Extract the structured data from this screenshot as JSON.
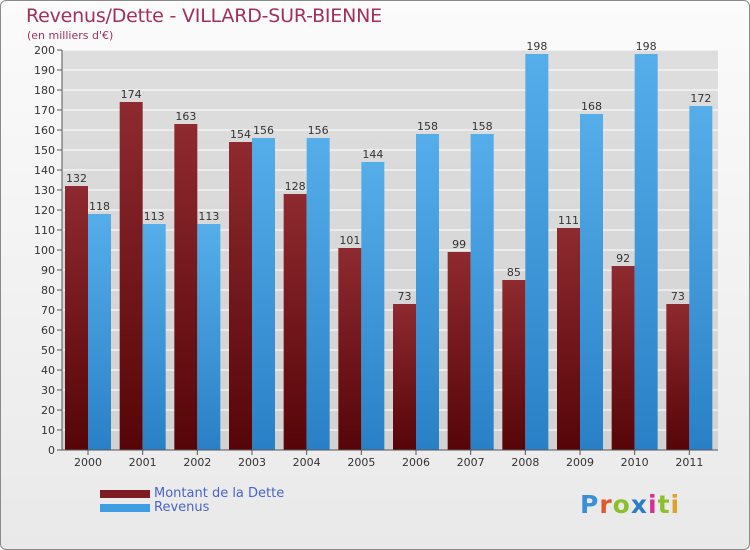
{
  "header": {
    "title": "Revenus/Dette - VILLARD-SUR-BIENNE",
    "subtitle": "(en milliers d'€)"
  },
  "logo": {
    "text": "Proxiti",
    "colors": [
      "#3b8fd9",
      "#e2582a",
      "#8bbf2e",
      "#2b7dc9",
      "#d9308f",
      "#8bbf2e",
      "#e2a12a"
    ]
  },
  "colors": {
    "dette": "#7d1c22",
    "revenus": "#3f9ee3",
    "grid": "#ffffff",
    "tick_text": "#333333",
    "title": "#a0305e",
    "legend_text": "#4b63c8"
  },
  "chart_data": {
    "type": "bar",
    "categories": [
      "2000",
      "2001",
      "2002",
      "2003",
      "2004",
      "2005",
      "2006",
      "2007",
      "2008",
      "2009",
      "2010",
      "2011"
    ],
    "series": [
      {
        "name": "Montant de la Dette",
        "values": [
          132,
          174,
          163,
          154,
          128,
          101,
          73,
          99,
          85,
          111,
          92,
          73
        ]
      },
      {
        "name": "Revenus",
        "values": [
          118,
          113,
          113,
          156,
          156,
          144,
          158,
          158,
          198,
          168,
          198,
          172
        ]
      }
    ],
    "ylim": [
      0,
      200
    ],
    "ytick_step": 10,
    "grid": true,
    "legend_position": "bottom-left",
    "data_labels": true
  }
}
